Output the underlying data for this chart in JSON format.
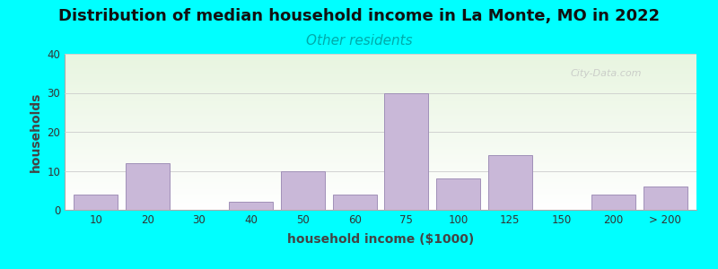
{
  "title": "Distribution of median household income in La Monte, MO in 2022",
  "subtitle": "Other residents",
  "xlabel": "household income ($1000)",
  "ylabel": "households",
  "background_color": "#00FFFF",
  "plot_bg_gradient_top": "#ffffff",
  "plot_bg_gradient_bottom": "#e8f5e0",
  "bar_color": "#c9b8d8",
  "bar_edge_color": "#a090b8",
  "title_fontsize": 13,
  "subtitle_fontsize": 11,
  "subtitle_color": "#00aaaa",
  "xlabel_fontsize": 10,
  "ylabel_fontsize": 10,
  "ylim": [
    0,
    40
  ],
  "yticks": [
    0,
    10,
    20,
    30,
    40
  ],
  "bars": [
    {
      "label": "10",
      "value": 4,
      "x": 0
    },
    {
      "label": "20",
      "value": 12,
      "x": 1
    },
    {
      "label": "30",
      "value": 0,
      "x": 2
    },
    {
      "label": "40",
      "value": 2,
      "x": 3
    },
    {
      "label": "50",
      "value": 10,
      "x": 4
    },
    {
      "label": "60",
      "value": 4,
      "x": 5
    },
    {
      "label": "75",
      "value": 30,
      "x": 6
    },
    {
      "label": "100",
      "value": 8,
      "x": 7
    },
    {
      "label": "125",
      "value": 14,
      "x": 8
    },
    {
      "label": "150",
      "value": 0,
      "x": 9
    },
    {
      "label": "200",
      "value": 4,
      "x": 10
    },
    {
      "label": "> 200",
      "value": 6,
      "x": 11
    }
  ],
  "watermark": "City-Data.com"
}
